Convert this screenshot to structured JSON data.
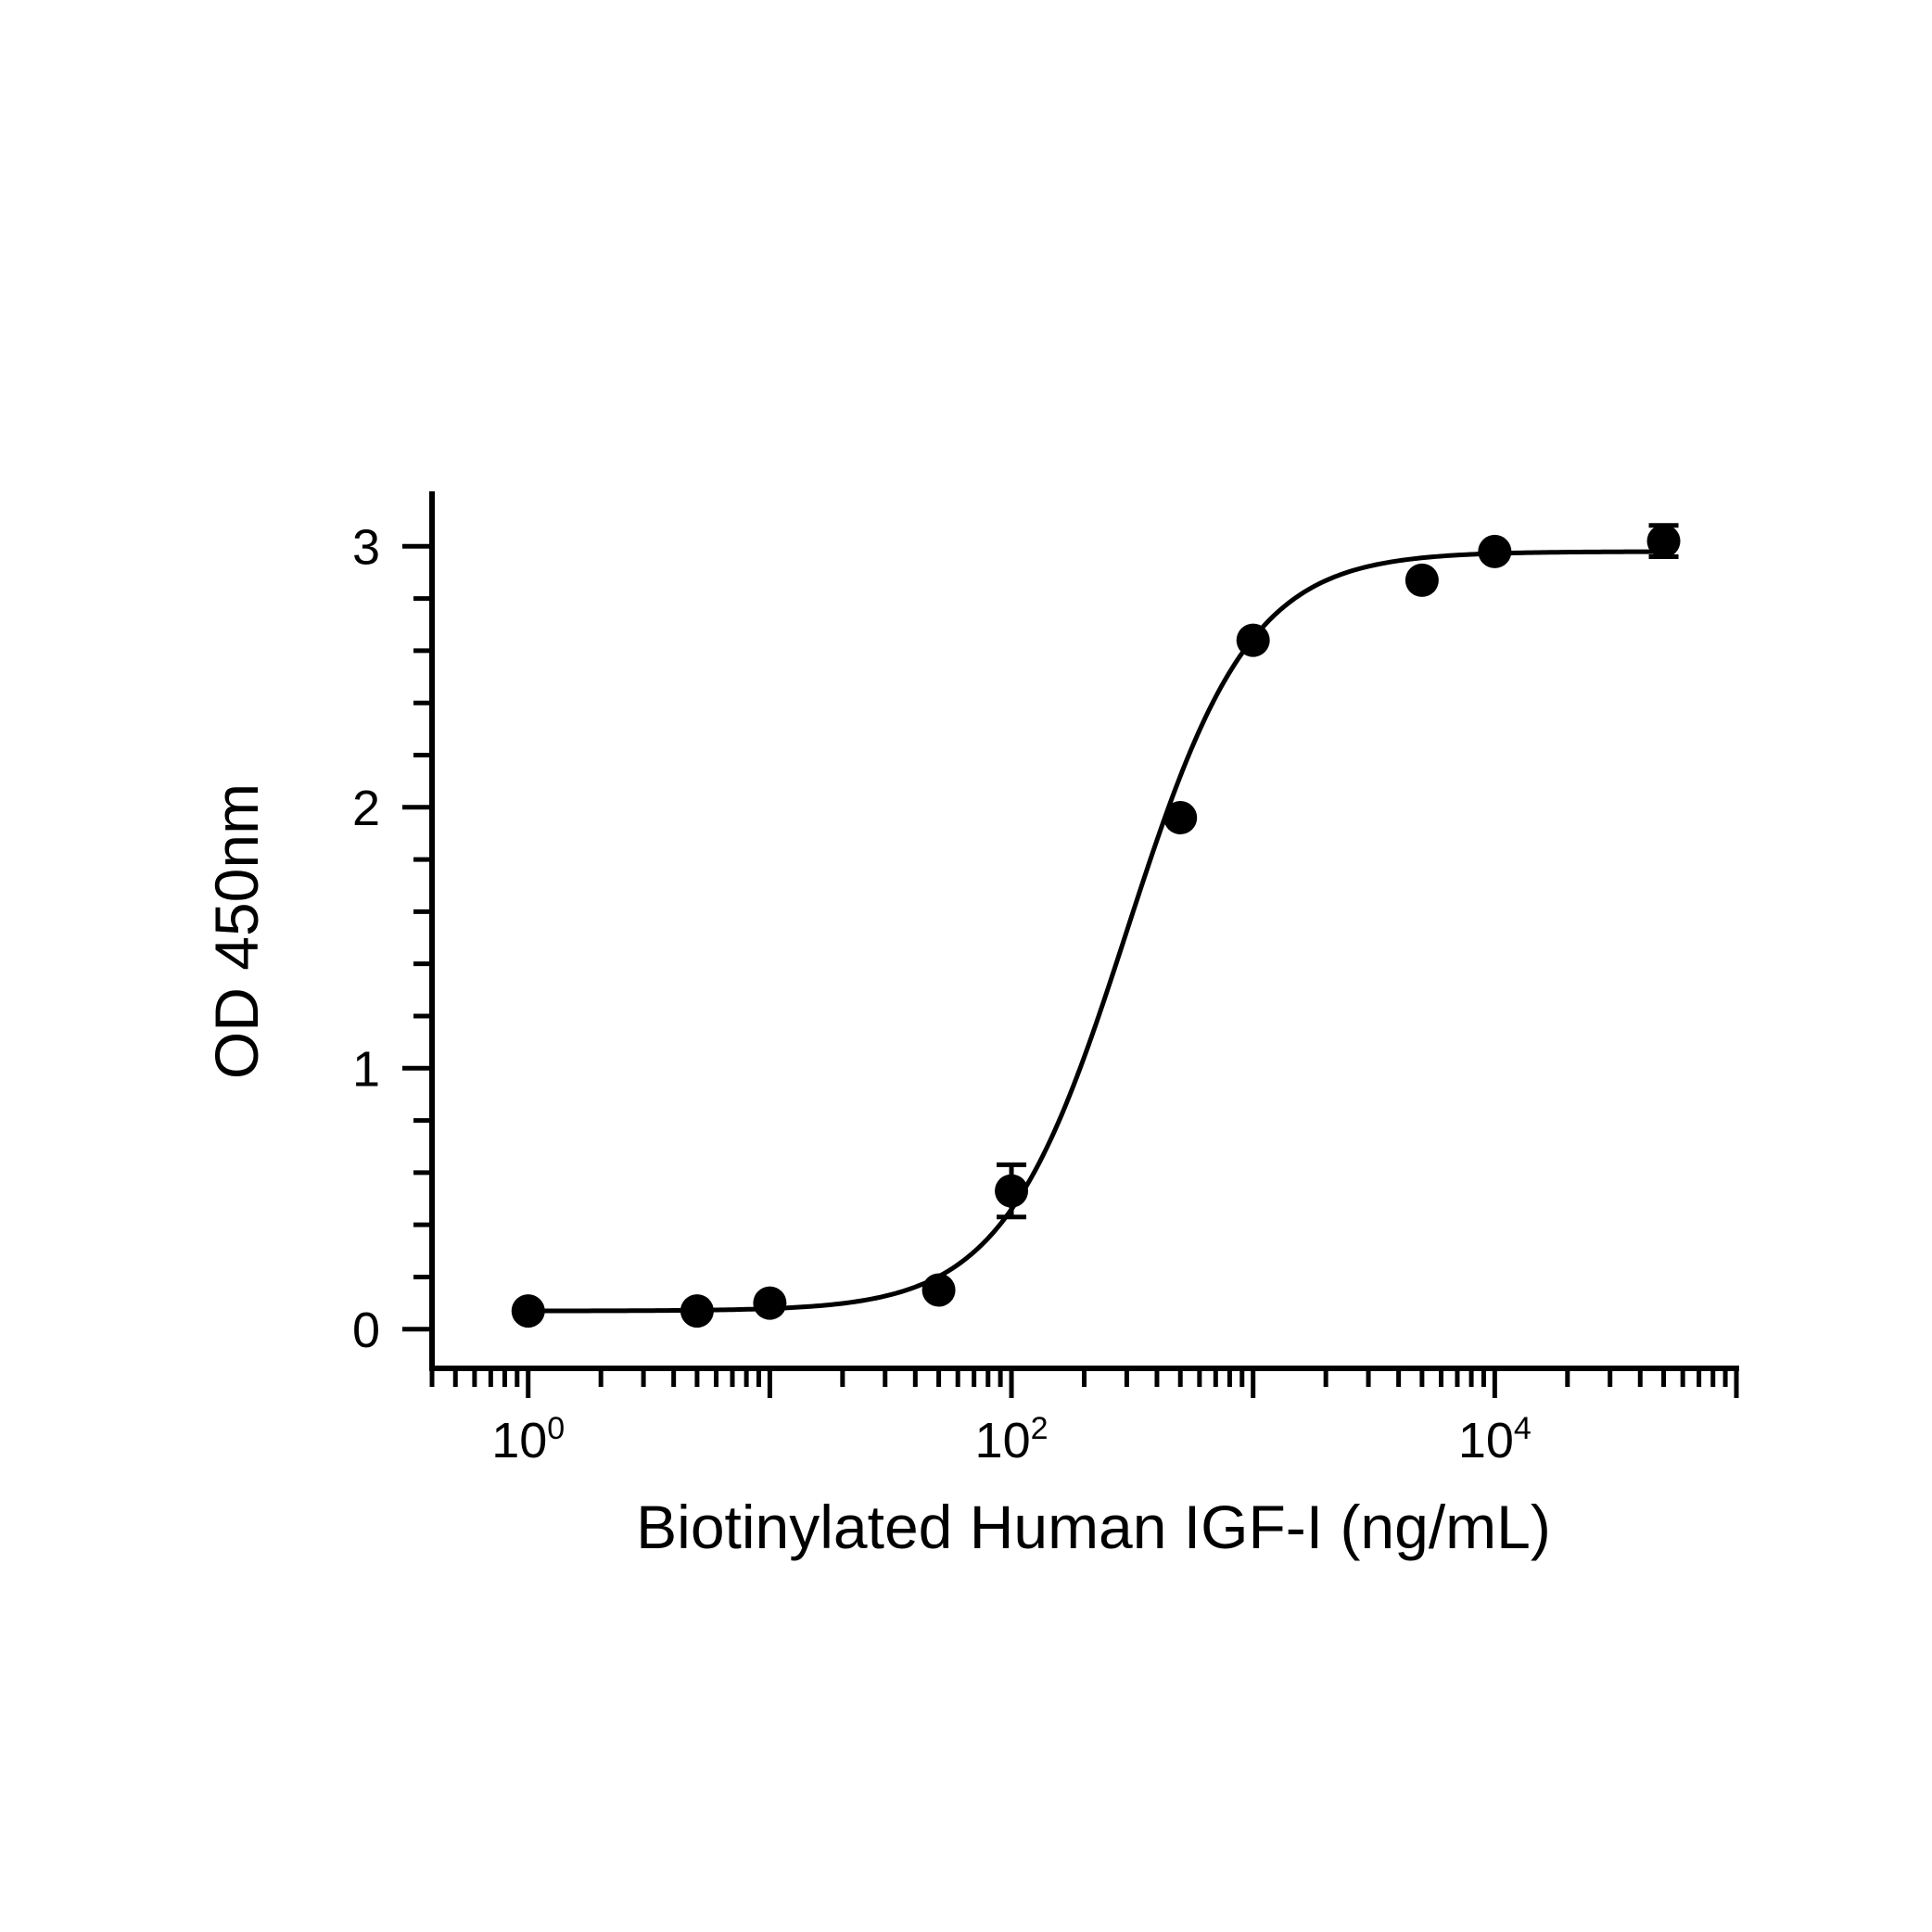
{
  "chart_data": {
    "type": "scatter",
    "title": "",
    "xlabel": "Biotinylated Human IGF-I (ng/mL)",
    "ylabel": "OD 450nm",
    "x_scale": "log10",
    "xlim": [
      0.4,
      100000
    ],
    "ylim": [
      -0.15,
      3.2
    ],
    "x_ticks": [
      {
        "value": 1,
        "base": "10",
        "exp": "0"
      },
      {
        "value": 100,
        "base": "10",
        "exp": "2"
      },
      {
        "value": 10000,
        "base": "10",
        "exp": "4"
      }
    ],
    "y_ticks": [
      0,
      1,
      2,
      3
    ],
    "grid": false,
    "legend": "none",
    "colors": {
      "line": "#000000",
      "marker": "#000000"
    },
    "series": [
      {
        "points": [
          {
            "x": 1,
            "y": 0.07,
            "err": 0
          },
          {
            "x": 5,
            "y": 0.07,
            "err": 0
          },
          {
            "x": 10,
            "y": 0.1,
            "err": 0
          },
          {
            "x": 50,
            "y": 0.15,
            "err": 0
          },
          {
            "x": 100,
            "y": 0.53,
            "err": 0.1
          },
          {
            "x": 500,
            "y": 1.96,
            "err": 0
          },
          {
            "x": 1000,
            "y": 2.64,
            "err": 0
          },
          {
            "x": 5000,
            "y": 2.87,
            "err": 0
          },
          {
            "x": 10000,
            "y": 2.98,
            "err": 0
          },
          {
            "x": 50000,
            "y": 3.02,
            "err": 0.06
          }
        ],
        "fit": {
          "model": "4PL",
          "bottom": 0.07,
          "top": 2.98,
          "ec50": 300,
          "hill": 1.7
        }
      }
    ]
  }
}
